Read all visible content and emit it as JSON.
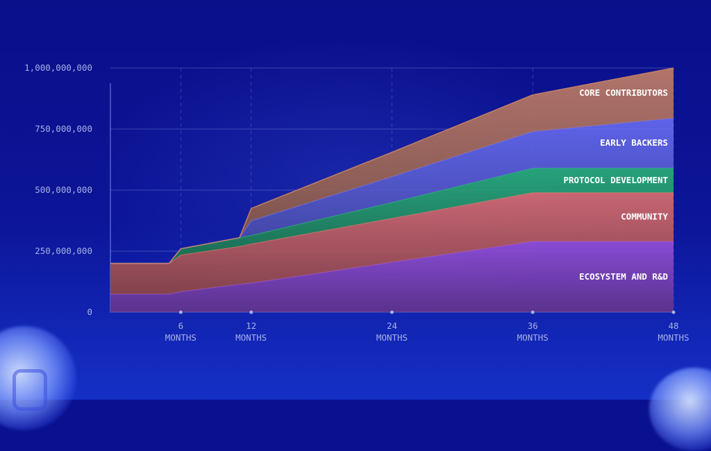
{
  "chart_data": {
    "type": "area",
    "stacked": true,
    "x": [
      0,
      5,
      6,
      11,
      12,
      24,
      36,
      48
    ],
    "x_ticks": [
      {
        "value": 6,
        "number": "6",
        "unit": "MONTHS"
      },
      {
        "value": 12,
        "number": "12",
        "unit": "MONTHS"
      },
      {
        "value": 24,
        "number": "24",
        "unit": "MONTHS"
      },
      {
        "value": 36,
        "number": "36",
        "unit": "MONTHS"
      },
      {
        "value": 48,
        "number": "48",
        "unit": "MONTHS"
      }
    ],
    "y_ticks": [
      {
        "value": 0,
        "label": "0"
      },
      {
        "value": 250000000,
        "label": "250,000,000"
      },
      {
        "value": 500000000,
        "label": "500,000,000"
      },
      {
        "value": 750000000,
        "label": "750,000,000"
      },
      {
        "value": 1000000000,
        "label": "1,000,000,000"
      }
    ],
    "xlim": [
      0,
      48
    ],
    "ylim": [
      0,
      1000000000
    ],
    "grid": true,
    "series": [
      {
        "name": "ECOSYSTEM AND R&D",
        "color": "#9a52dc",
        "values": [
          75000000,
          75000000,
          85000000,
          115000000,
          120000000,
          205000000,
          290000000,
          290000000
        ]
      },
      {
        "name": "COMMUNITY",
        "color": "#e3716e",
        "values": [
          125000000,
          125000000,
          150000000,
          155000000,
          160000000,
          180000000,
          200000000,
          200000000
        ]
      },
      {
        "name": "PROTOCOL DEVELOPMENT",
        "color": "#2bb577",
        "values": [
          0,
          0,
          25000000,
          35000000,
          35000000,
          65000000,
          100000000,
          100000000
        ]
      },
      {
        "name": "EARLY BACKERS",
        "color": "#6a6ef5",
        "values": [
          0,
          0,
          0,
          0,
          60000000,
          105000000,
          150000000,
          205000000
        ]
      },
      {
        "name": "CORE CONTRIBUTORS",
        "color": "#c88266",
        "values": [
          0,
          0,
          0,
          0,
          50000000,
          100000000,
          150000000,
          205000000
        ]
      }
    ]
  }
}
